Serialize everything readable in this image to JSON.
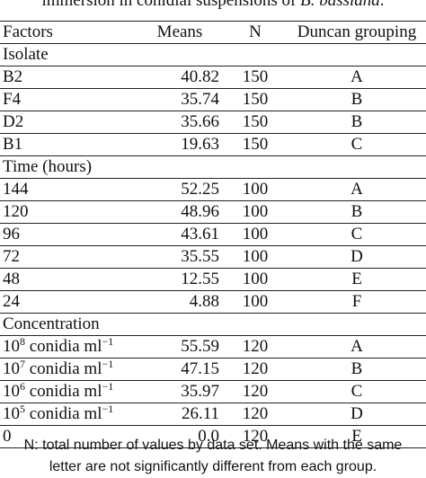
{
  "caption": {
    "text": "immersion in conidial suspensions of ",
    "species": "B. bassiana",
    "end": "."
  },
  "headers": {
    "factors": "Factors",
    "means": "Means",
    "n": "N",
    "duncan": "Duncan grouping"
  },
  "sections": {
    "isolate": {
      "label": "Isolate",
      "rows": [
        {
          "factor": "B2",
          "mean": "40.82",
          "n": "150",
          "group": "A"
        },
        {
          "factor": "F4",
          "mean": "35.74",
          "n": "150",
          "group": "B"
        },
        {
          "factor": "D2",
          "mean": "35.66",
          "n": "150",
          "group": "B"
        },
        {
          "factor": "B1",
          "mean": "19.63",
          "n": "150",
          "group": "C"
        }
      ]
    },
    "time": {
      "label": "Time (hours)",
      "rows": [
        {
          "factor": "144",
          "mean": "52.25",
          "n": "100",
          "group": "A"
        },
        {
          "factor": "120",
          "mean": "48.96",
          "n": "100",
          "group": "B"
        },
        {
          "factor": "96",
          "mean": "43.61",
          "n": "100",
          "group": "C"
        },
        {
          "factor": "72",
          "mean": "35.55",
          "n": "100",
          "group": "D"
        },
        {
          "factor": "48",
          "mean": "12.55",
          "n": "100",
          "group": "E"
        },
        {
          "factor": "24",
          "mean": "4.88",
          "n": "100",
          "group": "F"
        }
      ]
    },
    "concentration": {
      "label": "Concentration",
      "rows": [
        {
          "base": "10",
          "exp": "8",
          "unit": " conidia ml",
          "uexp": "−1",
          "mean": "55.59",
          "n": "120",
          "group": "A"
        },
        {
          "base": "10",
          "exp": "7",
          "unit": " conidia ml",
          "uexp": "−1",
          "mean": "47.15",
          "n": "120",
          "group": "B"
        },
        {
          "base": "10",
          "exp": "6",
          "unit": " conidia ml",
          "uexp": "−1",
          "mean": "35.97",
          "n": "120",
          "group": "C"
        },
        {
          "base": "10",
          "exp": "5",
          "unit": " conidia ml",
          "uexp": "−1",
          "mean": "26.11",
          "n": "120",
          "group": "D"
        },
        {
          "base": "0",
          "mean": "0.0",
          "n": "120",
          "group": "E"
        }
      ]
    }
  },
  "footnote": {
    "line1": "N: total number of values by data set. Means with the same",
    "line2": "letter are not significantly different from each group."
  }
}
